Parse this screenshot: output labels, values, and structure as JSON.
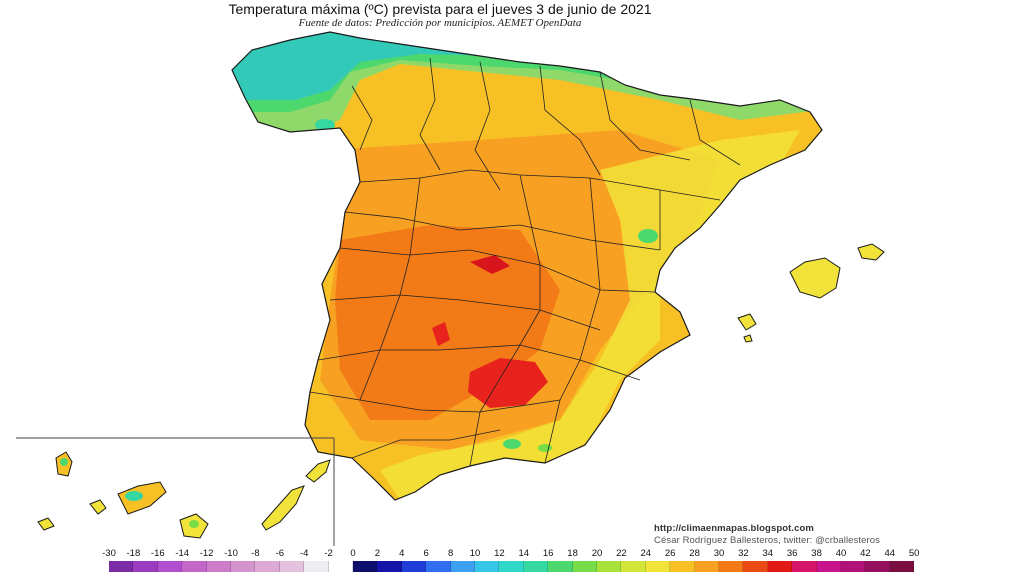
{
  "title": "Temperatura máxima (ºC) prevista para el jueves 3 de junio de 2021",
  "subtitle": "Fuente de datos: Predicción por municipios. AEMET OpenData",
  "credits": {
    "url": "http://climaenmapas.blogspot.com",
    "author": "César Rodríguez Ballesteros, twitter: @crballesteros"
  },
  "map": {
    "region": "Spain",
    "inset": "Canary Islands",
    "hottest_area_color": "#e8221c",
    "coolest_area_color": "#33c9b8"
  },
  "legend": {
    "unit": "ºC",
    "ticks": [
      "-30",
      "-18",
      "-16",
      "-14",
      "-12",
      "-10",
      "-8",
      "-6",
      "-4",
      "-2",
      "0",
      "2",
      "4",
      "6",
      "8",
      "10",
      "12",
      "14",
      "16",
      "18",
      "20",
      "22",
      "24",
      "26",
      "28",
      "30",
      "32",
      "34",
      "36",
      "38",
      "40",
      "42",
      "44",
      "50"
    ],
    "colors": [
      "#7b2aa8",
      "#9a3cc0",
      "#b24fd0",
      "#c266c8",
      "#cc7cc9",
      "#d393cc",
      "#dcaad4",
      "#e4c2de",
      "#ededf2",
      "#ffffff",
      "#0d0d6b",
      "#1414a8",
      "#1f3ed8",
      "#2f6ff0",
      "#3d9ff0",
      "#36c6e8",
      "#2fd8c8",
      "#35d8a0",
      "#4cd86c",
      "#76dc48",
      "#a8e23a",
      "#d2e63a",
      "#f2e33a",
      "#f7c126",
      "#f8a021",
      "#f27b18",
      "#ea4a14",
      "#e21a16",
      "#d6146a",
      "#c8148c",
      "#b0127a",
      "#94105e",
      "#7a0e3e"
    ]
  }
}
